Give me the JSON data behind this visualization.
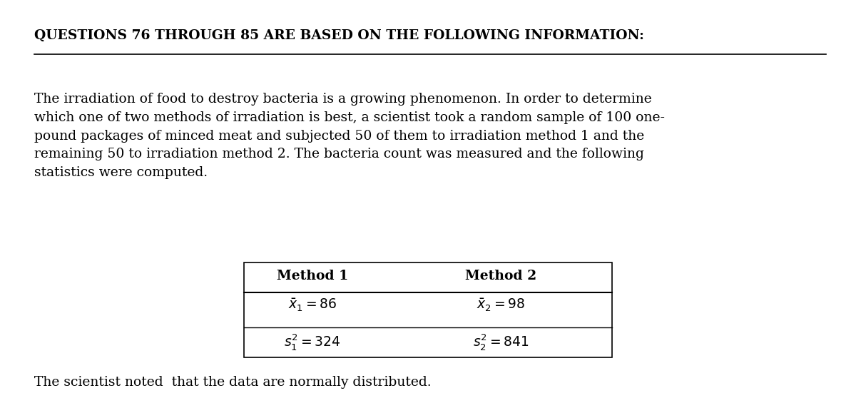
{
  "title": "QUESTIONS 76 THROUGH 85 ARE BASED ON THE FOLLOWING INFORMATION:",
  "paragraph": "The irradiation of food to destroy bacteria is a growing phenomenon. In order to determine\nwhich one of two methods of irradiation is best, a scientist took a random sample of 100 one-\npound packages of minced meat and subjected 50 of them to irradiation method 1 and the\nremaining 50 to irradiation method 2. The bacteria count was measured and the following\nstatistics were computed.",
  "footer": "The scientist noted  that the data are normally distributed.",
  "table_col1_header": "Method 1",
  "table_col2_header": "Method 2",
  "table_row1_col1": "$\\bar{x}_1 = 86$",
  "table_row1_col2": "$\\bar{x}_2 = 98$",
  "table_row2_col1": "$s_1^2 = 324$",
  "table_row2_col2": "$s_2^2 = 841$",
  "bg_color": "#ffffff",
  "text_color": "#000000",
  "title_fontsize": 13.5,
  "body_fontsize": 13.5,
  "footer_fontsize": 13.5,
  "table_fontsize": 13.5
}
